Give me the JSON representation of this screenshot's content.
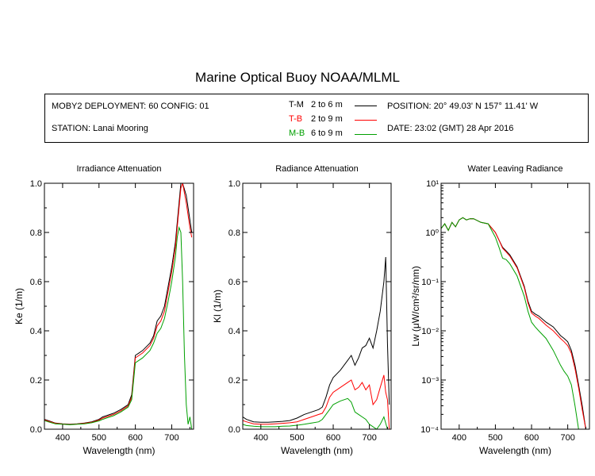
{
  "title": "Marine Optical Buoy NOAA/MLML",
  "info": {
    "deployment": "MOBY2 DEPLOYMENT: 60 CONFIG: 01",
    "station": "STATION: Lanai Mooring",
    "position": "POSITION: 20° 49.03' N   157° 11.41' W",
    "date": "DATE: 23:02 (GMT) 28 Apr 2016"
  },
  "legend": [
    {
      "label": "T-M",
      "depth": "2 to 6  m",
      "color": "#000000"
    },
    {
      "label": "T-B",
      "depth": "2 to 9  m",
      "color": "#ff0000"
    },
    {
      "label": "M-B",
      "depth": "6 to 9  m",
      "color": "#00a000"
    }
  ],
  "chart_data": [
    {
      "type": "line",
      "title": "Irradiance Attenuation",
      "xlabel": "Wavelength (nm)",
      "ylabel": "Ke  (1/m)",
      "xlim": [
        350,
        760
      ],
      "ylim": [
        0,
        1
      ],
      "xticks": [
        "400",
        "500",
        "600",
        "700"
      ],
      "yticks": [
        "0.0",
        "0.2",
        "0.4",
        "0.6",
        "0.8",
        "1.0"
      ],
      "series": [
        {
          "name": "T-M",
          "color": "#000000",
          "x": [
            350,
            360,
            380,
            400,
            420,
            440,
            460,
            480,
            500,
            510,
            520,
            540,
            560,
            580,
            590,
            600,
            610,
            620,
            640,
            650,
            660,
            670,
            680,
            690,
            700,
            710,
            720,
            725,
            730,
            740,
            750,
            755
          ],
          "y": [
            0.04,
            0.035,
            0.025,
            0.022,
            0.02,
            0.022,
            0.025,
            0.03,
            0.04,
            0.05,
            0.055,
            0.065,
            0.08,
            0.1,
            0.14,
            0.3,
            0.31,
            0.32,
            0.35,
            0.38,
            0.44,
            0.46,
            0.5,
            0.58,
            0.66,
            0.76,
            0.92,
            1.0,
            1.0,
            0.95,
            0.85,
            0.8
          ]
        },
        {
          "name": "T-B",
          "color": "#ff0000",
          "x": [
            350,
            360,
            380,
            400,
            420,
            440,
            460,
            480,
            500,
            510,
            520,
            540,
            560,
            580,
            590,
            600,
            610,
            620,
            640,
            650,
            660,
            670,
            680,
            690,
            700,
            710,
            720,
            725,
            730,
            740,
            750,
            755
          ],
          "y": [
            0.038,
            0.033,
            0.024,
            0.021,
            0.019,
            0.021,
            0.024,
            0.028,
            0.037,
            0.045,
            0.05,
            0.06,
            0.075,
            0.095,
            0.13,
            0.29,
            0.3,
            0.31,
            0.34,
            0.37,
            0.42,
            0.44,
            0.48,
            0.56,
            0.64,
            0.74,
            0.9,
            0.98,
            1.0,
            0.92,
            0.82,
            0.78
          ]
        },
        {
          "name": "M-B",
          "color": "#00a000",
          "x": [
            350,
            360,
            380,
            400,
            420,
            440,
            460,
            480,
            500,
            510,
            520,
            540,
            560,
            580,
            590,
            600,
            610,
            620,
            640,
            650,
            660,
            670,
            680,
            690,
            700,
            710,
            715,
            720,
            725,
            730,
            735,
            740,
            745,
            750,
            755
          ],
          "y": [
            0.035,
            0.03,
            0.022,
            0.02,
            0.018,
            0.02,
            0.022,
            0.026,
            0.034,
            0.04,
            0.045,
            0.055,
            0.07,
            0.09,
            0.12,
            0.27,
            0.28,
            0.29,
            0.32,
            0.35,
            0.39,
            0.41,
            0.45,
            0.52,
            0.6,
            0.7,
            0.78,
            0.82,
            0.8,
            0.6,
            0.3,
            0.1,
            0.02,
            0.05,
            0.0
          ]
        }
      ]
    },
    {
      "type": "line",
      "title": "Radiance Attenuation",
      "xlabel": "Wavelength (nm)",
      "ylabel": "Kl  (1/m)",
      "xlim": [
        350,
        760
      ],
      "ylim": [
        0,
        1
      ],
      "xticks": [
        "400",
        "500",
        "600",
        "700"
      ],
      "yticks": [
        "0.0",
        "0.2",
        "0.4",
        "0.6",
        "0.8",
        "1.0"
      ],
      "series": [
        {
          "name": "T-M",
          "color": "#000000",
          "x": [
            350,
            360,
            380,
            400,
            420,
            440,
            460,
            480,
            500,
            520,
            540,
            560,
            570,
            580,
            590,
            600,
            620,
            640,
            650,
            660,
            670,
            680,
            690,
            700,
            710,
            720,
            730,
            740,
            745,
            750,
            755
          ],
          "y": [
            0.05,
            0.04,
            0.03,
            0.028,
            0.028,
            0.03,
            0.032,
            0.035,
            0.045,
            0.06,
            0.07,
            0.08,
            0.09,
            0.13,
            0.18,
            0.21,
            0.24,
            0.28,
            0.3,
            0.26,
            0.29,
            0.33,
            0.34,
            0.37,
            0.33,
            0.4,
            0.48,
            0.6,
            0.7,
            0.35,
            0.1
          ]
        },
        {
          "name": "T-B",
          "color": "#ff0000",
          "x": [
            350,
            360,
            380,
            400,
            420,
            440,
            460,
            480,
            500,
            520,
            540,
            560,
            570,
            580,
            590,
            600,
            620,
            640,
            650,
            660,
            670,
            680,
            690,
            700,
            710,
            720,
            730,
            740,
            745,
            750,
            755
          ],
          "y": [
            0.035,
            0.03,
            0.022,
            0.02,
            0.02,
            0.022,
            0.024,
            0.026,
            0.03,
            0.04,
            0.05,
            0.06,
            0.065,
            0.09,
            0.13,
            0.15,
            0.17,
            0.19,
            0.2,
            0.16,
            0.17,
            0.19,
            0.16,
            0.18,
            0.1,
            0.12,
            0.17,
            0.22,
            0.15,
            0.12,
            0.0
          ]
        },
        {
          "name": "M-B",
          "color": "#00a000",
          "x": [
            350,
            360,
            380,
            400,
            420,
            440,
            460,
            480,
            500,
            520,
            540,
            560,
            570,
            580,
            590,
            600,
            620,
            640,
            650,
            660,
            670,
            680,
            690,
            700,
            710,
            720,
            730,
            740,
            750,
            755
          ],
          "y": [
            0.02,
            0.015,
            0.012,
            0.01,
            0.01,
            0.01,
            0.012,
            0.013,
            0.016,
            0.02,
            0.025,
            0.03,
            0.04,
            0.06,
            0.08,
            0.1,
            0.115,
            0.125,
            0.11,
            0.07,
            0.06,
            0.05,
            0.04,
            0.02,
            0.01,
            0.0,
            0.02,
            0.05,
            0.0,
            0.0
          ]
        }
      ]
    },
    {
      "type": "line",
      "title": "Water Leaving Radiance",
      "xlabel": "Wavelength (nm)",
      "ylabel": "Lw  (μW/cm²/sr/nm)",
      "xlim": [
        350,
        760
      ],
      "ylim": [
        0.0001,
        10
      ],
      "yscale": "log",
      "xticks": [
        "400",
        "500",
        "600",
        "700"
      ],
      "yticks": [
        "10⁻⁴",
        "10⁻³",
        "10⁻²",
        "10⁻¹",
        "10⁰",
        "10¹"
      ],
      "series": [
        {
          "name": "T-M",
          "color": "#000000",
          "x": [
            350,
            360,
            370,
            380,
            390,
            400,
            410,
            420,
            430,
            440,
            460,
            480,
            500,
            510,
            520,
            530,
            540,
            560,
            580,
            590,
            600,
            610,
            620,
            640,
            660,
            680,
            690,
            700,
            710,
            720,
            730,
            740,
            750
          ],
          "y": [
            1.2,
            1.5,
            1.1,
            1.6,
            1.3,
            1.8,
            2.0,
            1.8,
            1.9,
            1.9,
            1.6,
            1.5,
            1.0,
            0.7,
            0.5,
            0.42,
            0.35,
            0.2,
            0.08,
            0.04,
            0.025,
            0.022,
            0.02,
            0.015,
            0.012,
            0.008,
            0.007,
            0.006,
            0.004,
            0.002,
            0.0008,
            0.0003,
            0.0001
          ]
        },
        {
          "name": "T-B",
          "color": "#ff0000",
          "x": [
            350,
            360,
            370,
            380,
            390,
            400,
            410,
            420,
            430,
            440,
            460,
            480,
            500,
            510,
            520,
            530,
            540,
            560,
            580,
            590,
            600,
            610,
            620,
            640,
            660,
            680,
            690,
            700,
            710,
            720,
            730,
            740,
            750
          ],
          "y": [
            1.2,
            1.5,
            1.1,
            1.6,
            1.3,
            1.8,
            2.0,
            1.8,
            1.9,
            1.9,
            1.6,
            1.5,
            1.0,
            0.7,
            0.48,
            0.4,
            0.33,
            0.19,
            0.075,
            0.037,
            0.023,
            0.02,
            0.018,
            0.013,
            0.01,
            0.007,
            0.006,
            0.005,
            0.0035,
            0.0017,
            0.0007,
            0.00025,
            0.0001
          ]
        },
        {
          "name": "M-B",
          "color": "#00a000",
          "x": [
            350,
            360,
            370,
            380,
            390,
            400,
            410,
            420,
            430,
            440,
            460,
            480,
            500,
            510,
            520,
            530,
            540,
            560,
            580,
            590,
            600,
            610,
            620,
            640,
            660,
            680,
            690,
            700,
            710,
            720,
            730,
            740
          ],
          "y": [
            1.2,
            1.5,
            1.1,
            1.6,
            1.3,
            1.8,
            2.0,
            1.8,
            1.9,
            1.9,
            1.6,
            1.5,
            0.8,
            0.5,
            0.3,
            0.28,
            0.23,
            0.13,
            0.05,
            0.025,
            0.015,
            0.012,
            0.01,
            0.007,
            0.004,
            0.002,
            0.0015,
            0.0012,
            0.0008,
            0.0003,
            0.0001,
            0.0001
          ]
        }
      ]
    }
  ]
}
